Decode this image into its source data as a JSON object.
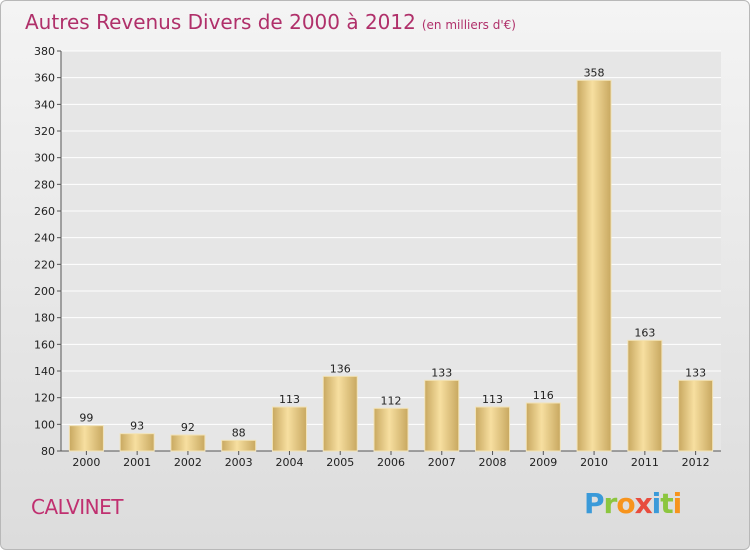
{
  "header": {
    "title": "Autres Revenus Divers de 2000 à 2012",
    "unit": "(en milliers d'€)"
  },
  "footer": {
    "commune": "CALVINET",
    "logo_letters": [
      {
        "ch": "P",
        "color": "#3a9ad9"
      },
      {
        "ch": "r",
        "color": "#8cc63f"
      },
      {
        "ch": "o",
        "color": "#f7941d"
      },
      {
        "ch": "x",
        "color": "#e84c3d"
      },
      {
        "ch": "i",
        "color": "#3a9ad9"
      },
      {
        "ch": "t",
        "color": "#8cc63f"
      },
      {
        "ch": "i",
        "color": "#f7941d"
      }
    ]
  },
  "chart_data": {
    "type": "bar",
    "title": "Autres Revenus Divers de 2000 à 2012",
    "subtitle": "(en milliers d'€)",
    "categories": [
      "2000",
      "2001",
      "2002",
      "2003",
      "2004",
      "2005",
      "2006",
      "2007",
      "2008",
      "2009",
      "2010",
      "2011",
      "2012"
    ],
    "values": [
      99,
      93,
      92,
      88,
      113,
      136,
      112,
      133,
      113,
      116,
      358,
      163,
      133
    ],
    "ylim": [
      80,
      380
    ],
    "yticks": [
      80,
      100,
      120,
      140,
      160,
      180,
      200,
      220,
      240,
      260,
      280,
      300,
      320,
      340,
      360,
      380
    ],
    "grid": true,
    "colors": {
      "bar_light": "#f7dfa0",
      "bar_dark": "#c8a860",
      "grid": "#ffffff",
      "title": "#b0306a"
    }
  }
}
